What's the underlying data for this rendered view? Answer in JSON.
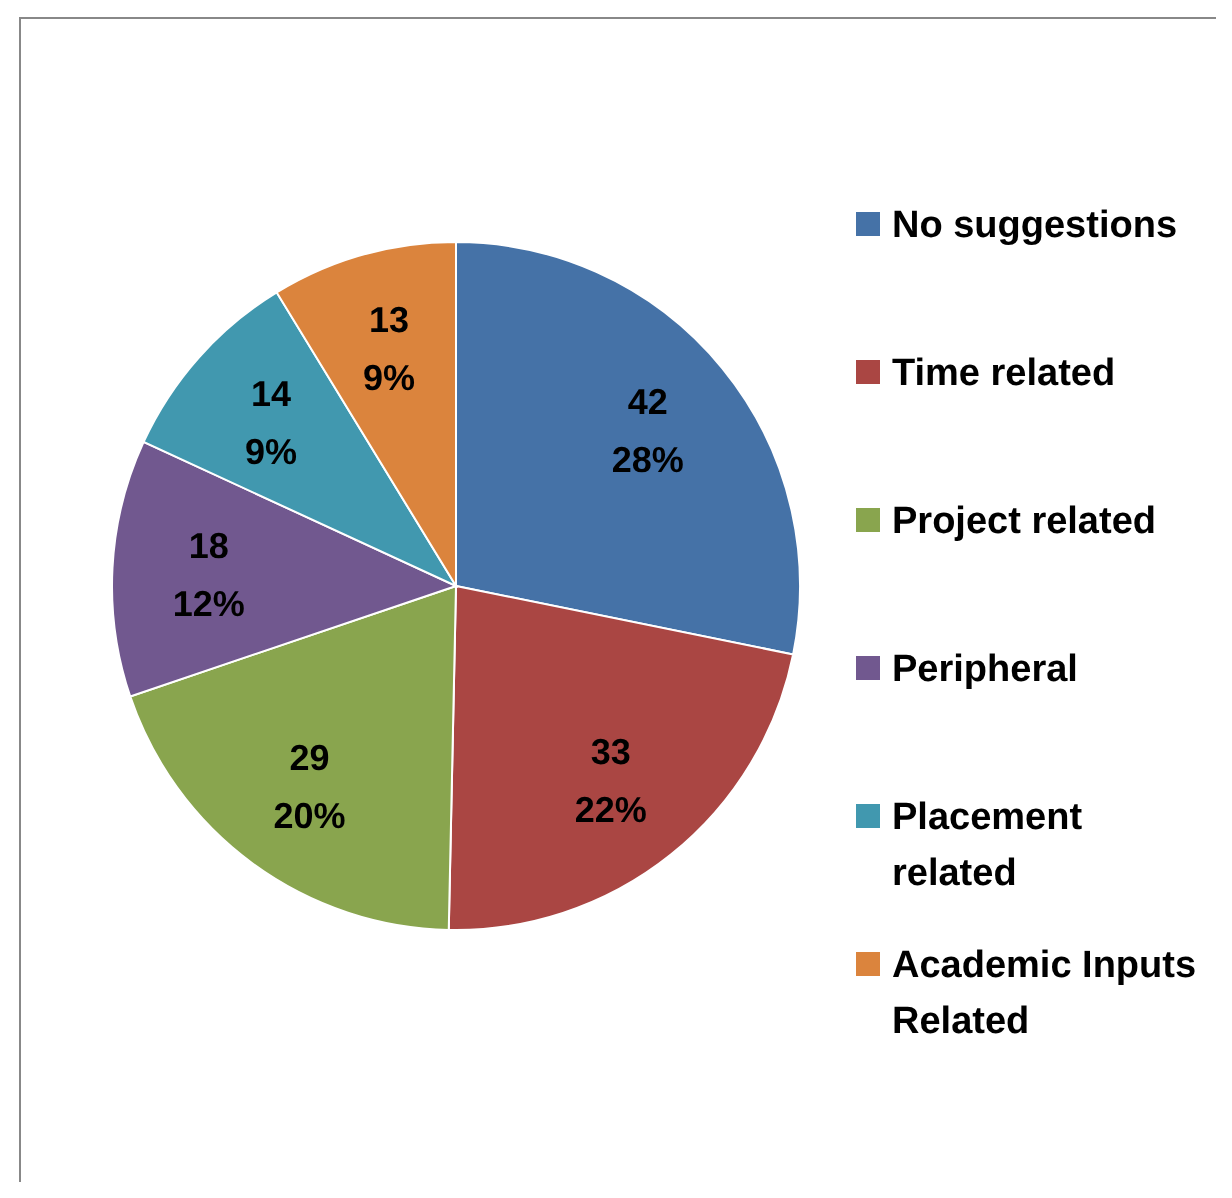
{
  "chart_data": {
    "type": "pie",
    "categories": [
      "No suggestions",
      "Time related",
      "Project related",
      "Peripheral",
      "Placement related",
      "Academic Inputs Related"
    ],
    "values": [
      42,
      33,
      29,
      18,
      14,
      13
    ],
    "colors": [
      "#4572a7",
      "#aa4643",
      "#89a54e",
      "#71588f",
      "#4198af",
      "#db843d"
    ],
    "value_labels": [
      "42\n28%",
      "33\n22%",
      "29\n20%",
      "18\n12%",
      "14\n9%",
      "13\n9%"
    ],
    "legend": "right"
  }
}
